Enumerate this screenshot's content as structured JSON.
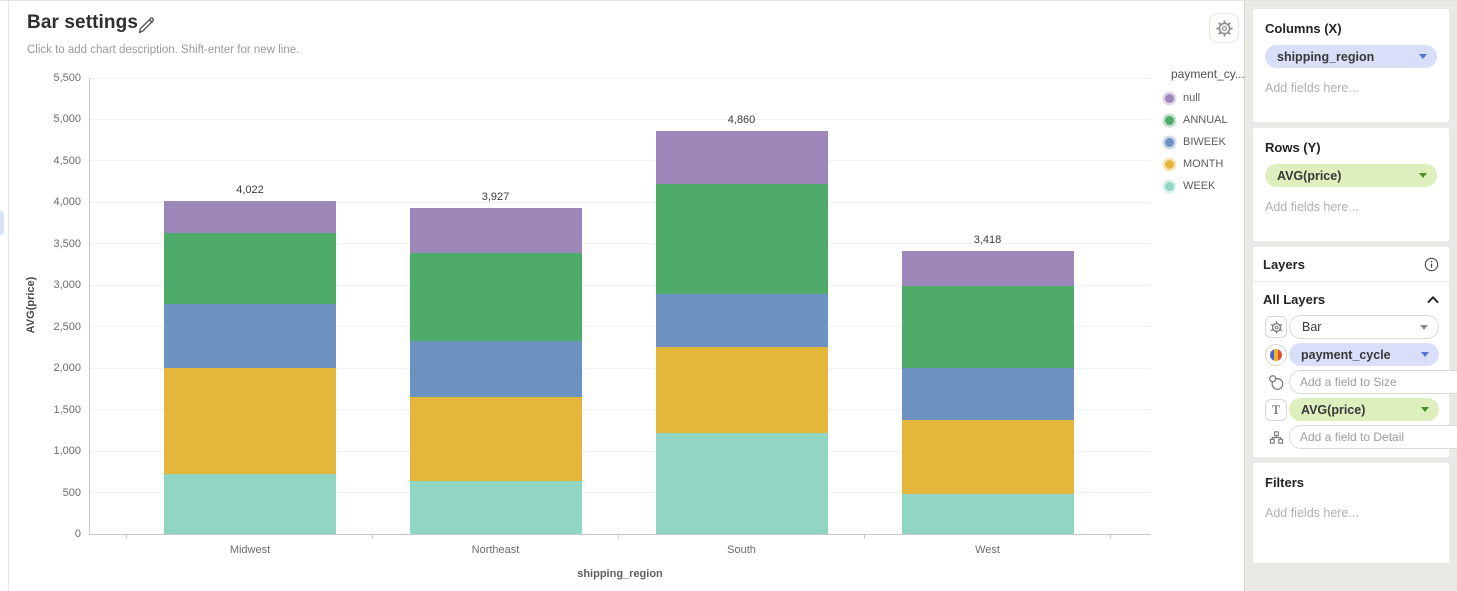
{
  "header": {
    "title": "Bar settings",
    "description_placeholder": "Click to add chart description. Shift-enter for new line."
  },
  "chart_data": {
    "type": "bar",
    "stacked": true,
    "categories": [
      "Midwest",
      "Northeast",
      "South",
      "West"
    ],
    "series": [
      {
        "name": "WEEK",
        "color": "#91d6c3",
        "values": [
          723,
          643,
          1218,
          486
        ]
      },
      {
        "name": "MONTH",
        "color": "#e4b63c",
        "values": [
          1283,
          1006,
          1037,
          885
        ]
      },
      {
        "name": "BIWEEK",
        "color": "#6d92c2",
        "values": [
          772,
          679,
          640,
          635
        ]
      },
      {
        "name": "ANNUAL",
        "color": "#4fab6a",
        "values": [
          849,
          1065,
          1323,
          982
        ]
      },
      {
        "name": "null",
        "color": "#9c87b8",
        "values": [
          395,
          534,
          642,
          430
        ]
      }
    ],
    "totals": [
      4022,
      3927,
      4860,
      3418
    ],
    "total_labels": [
      "4,022",
      "3,927",
      "4,860",
      "3,418"
    ],
    "xlabel": "shipping_region",
    "ylabel": "AVG(price)",
    "ylim": [
      0,
      5500
    ],
    "ytick_step": 500,
    "grid": true,
    "legend": {
      "title": "payment_cy...",
      "position": "right",
      "items": [
        "null",
        "ANNUAL",
        "BIWEEK",
        "MONTH",
        "WEEK"
      ]
    }
  },
  "panel": {
    "columns": {
      "title": "Columns (X)",
      "field": "shipping_region",
      "placeholder": "Add fields here..."
    },
    "rows": {
      "title": "Rows (Y)",
      "field": "AVG(price)",
      "placeholder": "Add fields here..."
    },
    "layers": {
      "title": "Layers",
      "group_label": "All Layers",
      "type_value": "Bar",
      "color_field": "payment_cycle",
      "size_placeholder": "Add a field to Size",
      "label_field": "AVG(price)",
      "detail_placeholder": "Add a field to Detail"
    },
    "filters": {
      "title": "Filters",
      "placeholder": "Add fields here..."
    }
  },
  "colors": {
    "dimension_pill_bg": "#d9dff8",
    "dimension_pill_caret": "#5a6fd8",
    "measure_pill_bg": "#ddefbd",
    "measure_pill_caret": "#4e8c2a",
    "panel_bg": "#e9eae6",
    "grid_line": "#f1f1ef",
    "axis_line": "#c9c9c7"
  }
}
